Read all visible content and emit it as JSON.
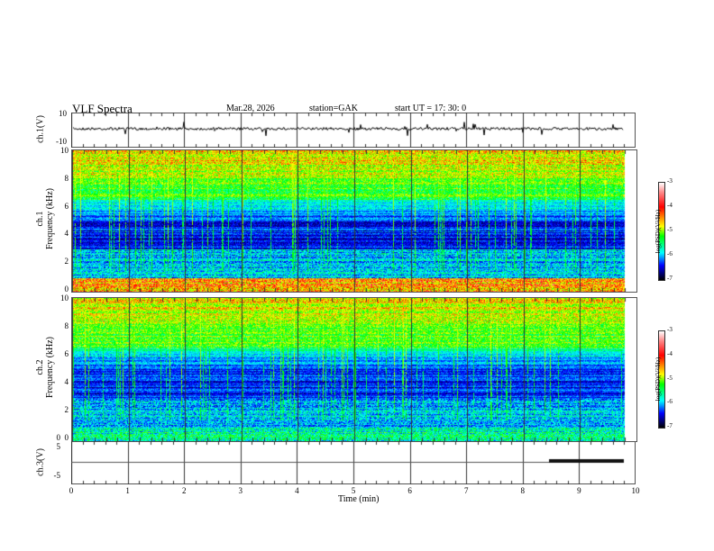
{
  "header": {
    "title": "VLF  Spectra",
    "date": "Mar.28, 2026",
    "station": "station=GAK",
    "start": "start  UT =   17: 30: 0"
  },
  "chart_data": [
    {
      "type": "line",
      "name": "ch1-voltage",
      "ylabel": "ch.1(V)",
      "ylim": [
        -10,
        10
      ],
      "yticks": [
        "10",
        "-10"
      ],
      "xlim": [
        0,
        10
      ]
    },
    {
      "type": "heatmap",
      "name": "ch1-spectrogram",
      "ylabel": "ch.1\nFrequency  (kHz)",
      "ylabel_top": "ch.1",
      "ylabel_bottom": "Frequency  (kHz)",
      "ylim": [
        0,
        10
      ],
      "yticks": [
        "0",
        "2",
        "4",
        "6",
        "8",
        "10"
      ],
      "xlim": [
        0,
        10
      ],
      "colorbar": {
        "label": "log(PSD)(V²/Hz)",
        "range": [
          -7,
          -3
        ],
        "ticks": [
          "-3",
          "-4",
          "-5",
          "-6",
          "-7"
        ]
      }
    },
    {
      "type": "heatmap",
      "name": "ch2-spectrogram",
      "ylabel_top": "ch.2",
      "ylabel_bottom": "Frequency  (kHz)",
      "ylim": [
        0,
        10
      ],
      "yticks": [
        "0",
        "2",
        "4",
        "6",
        "8",
        "10"
      ],
      "xlim": [
        0,
        10
      ],
      "colorbar": {
        "label": "log(PSD)(V²/Hz)",
        "range": [
          -7,
          -3
        ],
        "ticks": [
          "-3",
          "-4",
          "-5",
          "-6",
          "-7"
        ]
      }
    },
    {
      "type": "line",
      "name": "ch3-voltage",
      "ylabel": "ch.3(V)",
      "ylim": [
        -5,
        5
      ],
      "yticks": [
        "5",
        "0",
        "-5"
      ],
      "level": -1.2,
      "xlim": [
        0,
        10
      ]
    }
  ],
  "xaxis": {
    "label": "Time  (min)",
    "ticks": [
      "0",
      "1",
      "2",
      "3",
      "4",
      "5",
      "6",
      "7",
      "8",
      "9",
      "10"
    ]
  }
}
